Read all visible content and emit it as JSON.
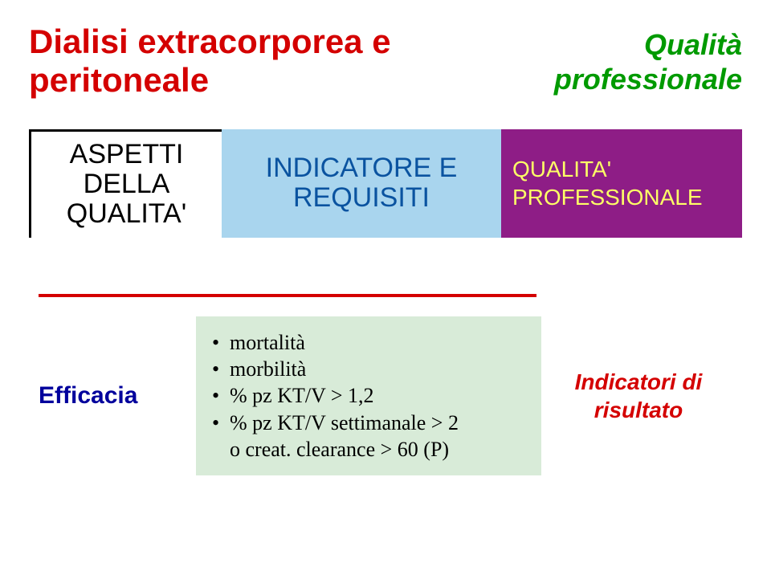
{
  "colors": {
    "title_red": "#d40000",
    "title_green": "#009a00",
    "cell2_bg": "#a9d5ee",
    "cell2_text": "#0a53a0",
    "cell3_bg": "#8e1d86",
    "cell3_text": "#feff66",
    "hr_red": "#d40000",
    "eff_blue": "#00009c",
    "bullets_bg": "#d8ebd8",
    "risultato_red": "#d40000"
  },
  "header": {
    "title_line1": "Dialisi extracorporea e",
    "title_line2": "peritoneale",
    "right_line1": "Qualità",
    "right_line2": "professionale"
  },
  "table": {
    "col1_line1": "ASPETTI",
    "col1_line2": "DELLA",
    "col1_line3": "QUALITA'",
    "col2_line1": "INDICATORE E",
    "col2_line2": "REQUISITI",
    "col3_line1": "QUALITA'",
    "col3_line2": "PROFESSIONALE"
  },
  "efficacia": {
    "label": "Efficacia",
    "bullets": {
      "b1": "mortalità",
      "b2": "morbilità",
      "b3": "% pz KT/V > 1,2",
      "b4": "% pz KT/V settimanale > 2",
      "b4_sub": "o creat. clearance > 60 (P)"
    },
    "risultato_line1": "Indicatori di",
    "risultato_line2": "risultato"
  }
}
